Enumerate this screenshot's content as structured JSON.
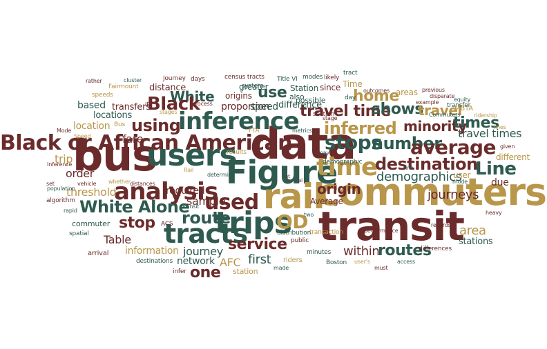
{
  "palette": {
    "brown": "#6b2b2b",
    "teal": "#2e5a4f",
    "gold": "#b8964a",
    "olive": "#8a7b2a"
  },
  "words": [
    {
      "text": "Black or African American",
      "color": "#6b2b2b",
      "size": 30,
      "rotate": 0
    },
    {
      "text": "bus",
      "color": "#6b2b2b",
      "size": 62,
      "rotate": 0
    },
    {
      "text": "users",
      "color": "#2e5a4f",
      "size": 44,
      "rotate": 0
    },
    {
      "text": "data",
      "color": "#6b2b2b",
      "size": 62,
      "rotate": 0
    },
    {
      "text": "Figure",
      "color": "#2e5a4f",
      "size": 46,
      "rotate": 0
    },
    {
      "text": "commuters",
      "color": "#b8964a",
      "size": 54,
      "rotate": 0
    },
    {
      "text": "transit",
      "color": "#6b2b2b",
      "size": 58,
      "rotate": 0
    },
    {
      "text": "rail",
      "color": "#b8964a",
      "size": 50,
      "rotate": 0
    },
    {
      "text": "trips",
      "color": "#2e5a4f",
      "size": 44,
      "rotate": 0
    },
    {
      "text": "tracts",
      "color": "#2e5a4f",
      "size": 38,
      "rotate": 0
    },
    {
      "text": "analysis",
      "color": "#6b2b2b",
      "size": 34,
      "rotate": 0
    },
    {
      "text": "inference",
      "color": "#2e5a4f",
      "size": 34,
      "rotate": 0
    },
    {
      "text": "time",
      "color": "#b8964a",
      "size": 36,
      "rotate": 0
    },
    {
      "text": "used",
      "color": "#6b2b2b",
      "size": 30,
      "rotate": 0
    },
    {
      "text": "stops",
      "color": "#2e5a4f",
      "size": 28,
      "rotate": 0
    },
    {
      "text": "number",
      "color": "#2e5a4f",
      "size": 24,
      "rotate": 0
    },
    {
      "text": "average",
      "color": "#6b2b2b",
      "size": 28,
      "rotate": 0
    },
    {
      "text": "Line",
      "color": "#2e5a4f",
      "size": 26,
      "rotate": 0
    },
    {
      "text": "destination",
      "color": "#6b2b2b",
      "size": 24,
      "rotate": 0
    },
    {
      "text": "inferred",
      "color": "#b8964a",
      "size": 24,
      "rotate": 0
    },
    {
      "text": "minority",
      "color": "#6b2b2b",
      "size": 20,
      "rotate": 0
    },
    {
      "text": "times",
      "color": "#2e5a4f",
      "size": 22,
      "rotate": 0
    },
    {
      "text": "travel time",
      "color": "#6b2b2b",
      "size": 22,
      "rotate": 0
    },
    {
      "text": "shows",
      "color": "#2e5a4f",
      "size": 22,
      "rotate": 0
    },
    {
      "text": "travel",
      "color": "#b8964a",
      "size": 20,
      "rotate": 0
    },
    {
      "text": "home",
      "color": "#b8964a",
      "size": 22,
      "rotate": 0
    },
    {
      "text": "use",
      "color": "#2e5a4f",
      "size": 22,
      "rotate": 0
    },
    {
      "text": "White",
      "color": "#2e5a4f",
      "size": 20,
      "rotate": 0
    },
    {
      "text": "Black",
      "color": "#6b2b2b",
      "size": 26,
      "rotate": 0
    },
    {
      "text": "using",
      "color": "#6b2b2b",
      "size": 24,
      "rotate": 0
    },
    {
      "text": "White Alone",
      "color": "#2e5a4f",
      "size": 24,
      "rotate": 0
    },
    {
      "text": "route",
      "color": "#2e5a4f",
      "size": 24,
      "rotate": 0
    },
    {
      "text": "stop",
      "color": "#6b2b2b",
      "size": 22,
      "rotate": 0
    },
    {
      "text": "OD",
      "color": "#b8964a",
      "size": 28,
      "rotate": 0
    },
    {
      "text": "service",
      "color": "#6b2b2b",
      "size": 22,
      "rotate": 0
    },
    {
      "text": "origin",
      "color": "#6b2b2b",
      "size": 20,
      "rotate": 0
    },
    {
      "text": "demographics",
      "color": "#2e5a4f",
      "size": 18,
      "rotate": 0
    },
    {
      "text": "journeys",
      "color": "#6b2b2b",
      "size": 18,
      "rotate": 0
    },
    {
      "text": "travel times",
      "color": "#2e5a4f",
      "size": 16,
      "rotate": 0
    },
    {
      "text": "area",
      "color": "#b8964a",
      "size": 18,
      "rotate": 0
    },
    {
      "text": "routes",
      "color": "#2e5a4f",
      "size": 22,
      "rotate": 0
    },
    {
      "text": "within",
      "color": "#6b2b2b",
      "size": 18,
      "rotate": 0
    },
    {
      "text": "first",
      "color": "#2e5a4f",
      "size": 18,
      "rotate": 0
    },
    {
      "text": "journey",
      "color": "#2e5a4f",
      "size": 16,
      "rotate": 0
    },
    {
      "text": "one",
      "color": "#6b2b2b",
      "size": 22,
      "rotate": 0
    },
    {
      "text": "Table",
      "color": "#6b2b2b",
      "size": 16,
      "rotate": 0
    },
    {
      "text": "information",
      "color": "#b8964a",
      "size": 14,
      "rotate": 0
    },
    {
      "text": "network",
      "color": "#2e5a4f",
      "size": 14,
      "rotate": 0
    },
    {
      "text": "AFC",
      "color": "#b8964a",
      "size": 16,
      "rotate": 0
    },
    {
      "text": "sample",
      "color": "#6b2b2b",
      "size": 16,
      "rotate": 0
    },
    {
      "text": "required",
      "color": "#6b2b2b",
      "size": 14,
      "rotate": 0
    },
    {
      "text": "threshold",
      "color": "#b8964a",
      "size": 16,
      "rotate": 0
    },
    {
      "text": "order",
      "color": "#6b2b2b",
      "size": 16,
      "rotate": 0
    },
    {
      "text": "trip",
      "color": "#b8964a",
      "size": 16,
      "rotate": 0
    },
    {
      "text": "fare",
      "color": "#6b2b2b",
      "size": 16,
      "rotate": 0
    },
    {
      "text": "location",
      "color": "#b8964a",
      "size": 14,
      "rotate": 0
    },
    {
      "text": "locations",
      "color": "#2e5a4f",
      "size": 13,
      "rotate": 0
    },
    {
      "text": "based",
      "color": "#2e5a4f",
      "size": 14,
      "rotate": 0
    },
    {
      "text": "transfers",
      "color": "#6b2b2b",
      "size": 13,
      "rotate": 0
    },
    {
      "text": "distance",
      "color": "#6b2b2b",
      "size": 13,
      "rotate": 0
    },
    {
      "text": "proportion",
      "color": "#6b2b2b",
      "size": 14,
      "rotate": 0
    },
    {
      "text": "speed",
      "color": "#2e5a4f",
      "size": 14,
      "rotate": 0
    },
    {
      "text": "difference",
      "color": "#2e5a4f",
      "size": 13,
      "rotate": 0
    },
    {
      "text": "origins",
      "color": "#6b2b2b",
      "size": 12,
      "rotate": 0
    },
    {
      "text": "greater",
      "color": "#2e5a4f",
      "size": 12,
      "rotate": 0
    },
    {
      "text": "Station",
      "color": "#2e5a4f",
      "size": 12,
      "rotate": 0
    },
    {
      "text": "since",
      "color": "#6b2b2b",
      "size": 12,
      "rotate": 0
    },
    {
      "text": "also",
      "color": "#2e5a4f",
      "size": 11,
      "rotate": 0
    },
    {
      "text": "possible",
      "color": "#2e5a4f",
      "size": 11,
      "rotate": 0
    },
    {
      "text": "Time",
      "color": "#b8964a",
      "size": 12,
      "rotate": 0
    },
    {
      "text": "areas",
      "color": "#b8964a",
      "size": 12,
      "rotate": 0
    },
    {
      "text": "ridership",
      "color": "#b8964a",
      "size": 8,
      "rotate": 0
    },
    {
      "text": "cluster",
      "color": "#2e5a4f",
      "size": 8,
      "rotate": 0
    },
    {
      "text": "Journey",
      "color": "#6b2b2b",
      "size": 9,
      "rotate": 0
    },
    {
      "text": "days",
      "color": "#6b2b2b",
      "size": 9,
      "rotate": 0
    },
    {
      "text": "census tracts",
      "color": "#6b2b2b",
      "size": 9,
      "rotate": 0
    },
    {
      "text": "Title VI",
      "color": "#2e5a4f",
      "size": 9,
      "rotate": 0
    },
    {
      "text": "modes",
      "color": "#2e5a4f",
      "size": 9,
      "rotate": 0
    },
    {
      "text": "likely",
      "color": "#6b2b2b",
      "size": 9,
      "rotate": 0
    },
    {
      "text": "tract",
      "color": "#2e5a4f",
      "size": 9,
      "rotate": 0
    },
    {
      "text": "Fairmount",
      "color": "#b8964a",
      "size": 9,
      "rotate": 0
    },
    {
      "text": "speeds",
      "color": "#b8964a",
      "size": 9,
      "rotate": 0
    },
    {
      "text": "Speed",
      "color": "#b8964a",
      "size": 8,
      "rotate": 0
    },
    {
      "text": "Mode",
      "color": "#6b2b2b",
      "size": 8,
      "rotate": 0
    },
    {
      "text": "Bus",
      "color": "#b8964a",
      "size": 9,
      "rotate": 0
    },
    {
      "text": "stages",
      "color": "#b8964a",
      "size": 8,
      "rotate": 0
    },
    {
      "text": "process",
      "color": "#6b2b2b",
      "size": 8,
      "rotate": 0
    },
    {
      "text": "ID",
      "color": "#6b2b2b",
      "size": 8,
      "rotate": 0
    },
    {
      "text": "system",
      "color": "#2e5a4f",
      "size": 9,
      "rotate": 0
    },
    {
      "text": "outcomes",
      "color": "#6b2b2b",
      "size": 8,
      "rotate": 0
    },
    {
      "text": "previous",
      "color": "#6b2b2b",
      "size": 8,
      "rotate": 0
    },
    {
      "text": "disparate",
      "color": "#6b2b2b",
      "size": 8,
      "rotate": 0
    },
    {
      "text": "equity",
      "color": "#2e5a4f",
      "size": 8,
      "rotate": 0
    },
    {
      "text": "example",
      "color": "#6b2b2b",
      "size": 8,
      "rotate": 0
    },
    {
      "text": "transfer",
      "color": "#2e5a4f",
      "size": 9,
      "rotate": 0
    },
    {
      "text": "MBTA",
      "color": "#b8964a",
      "size": 10,
      "rotate": 0
    },
    {
      "text": "Commuters",
      "color": "#2e5a4f",
      "size": 8,
      "rotate": 0
    },
    {
      "text": "day",
      "color": "#2e5a4f",
      "size": 9,
      "rotate": 0
    },
    {
      "text": "stage",
      "color": "#6b2b2b",
      "size": 8,
      "rotate": 0
    },
    {
      "text": "section",
      "color": "#6b2b2b",
      "size": 9,
      "rotate": 0
    },
    {
      "text": "metrics",
      "color": "#2e5a4f",
      "size": 8,
      "rotate": 0
    },
    {
      "text": "FTA",
      "color": "#b8964a",
      "size": 9,
      "rotate": 0
    },
    {
      "text": "lines",
      "color": "#b8964a",
      "size": 8,
      "rotate": 0
    },
    {
      "text": "given",
      "color": "#6b2b2b",
      "size": 8,
      "rotate": 0
    },
    {
      "text": "different",
      "color": "#b8964a",
      "size": 12,
      "rotate": 0
    },
    {
      "text": "may",
      "color": "#2e5a4f",
      "size": 8,
      "rotate": 0
    },
    {
      "text": "demographic",
      "color": "#2e5a4f",
      "size": 9,
      "rotate": 0
    },
    {
      "text": "results",
      "color": "#b8964a",
      "size": 9,
      "rotate": 0
    },
    {
      "text": "et",
      "color": "#6b2b2b",
      "size": 7,
      "rotate": 0
    },
    {
      "text": "al",
      "color": "#6b2b2b",
      "size": 7,
      "rotate": 0
    },
    {
      "text": "determine",
      "color": "#2e5a4f",
      "size": 8,
      "rotate": 0
    },
    {
      "text": "line",
      "color": "#2e5a4f",
      "size": 8,
      "rotate": 0
    },
    {
      "text": "user",
      "color": "#b8964a",
      "size": 12,
      "rotate": 0
    },
    {
      "text": "due",
      "color": "#6b2b2b",
      "size": 14,
      "rotate": 0
    },
    {
      "text": "mode",
      "color": "#2e5a4f",
      "size": 8,
      "rotate": 0
    },
    {
      "text": "Inference",
      "color": "#6b2b2b",
      "size": 8,
      "rotate": 0
    },
    {
      "text": "set",
      "color": "#6b2b2b",
      "size": 8,
      "rotate": 0
    },
    {
      "text": "population",
      "color": "#2e5a4f",
      "size": 8,
      "rotate": 0
    },
    {
      "text": "vehicle",
      "color": "#6b2b2b",
      "size": 8,
      "rotate": 0
    },
    {
      "text": "whether",
      "color": "#b8964a",
      "size": 8,
      "rotate": 0
    },
    {
      "text": "distances",
      "color": "#6b2b2b",
      "size": 8,
      "rotate": 0
    },
    {
      "text": "Rail",
      "color": "#b8964a",
      "size": 8,
      "rotate": 0
    },
    {
      "text": "algorithm",
      "color": "#6b2b2b",
      "size": 9,
      "rotate": 0
    },
    {
      "text": "rapid",
      "color": "#2e5a4f",
      "size": 8,
      "rotate": 0
    },
    {
      "text": "Transit",
      "color": "#2e5a4f",
      "size": 8,
      "rotate": 0
    },
    {
      "text": "Average",
      "color": "#6b2b2b",
      "size": 12,
      "rotate": 0
    },
    {
      "text": "two",
      "color": "#2e5a4f",
      "size": 8,
      "rotate": 0
    },
    {
      "text": "transaction",
      "color": "#b8964a",
      "size": 9,
      "rotate": 0
    },
    {
      "text": "performance",
      "color": "#6b2b2b",
      "size": 8,
      "rotate": 0
    },
    {
      "text": "heavy",
      "color": "#6b2b2b",
      "size": 8,
      "rotate": 0
    },
    {
      "text": "stations",
      "color": "#2e5a4f",
      "size": 13,
      "rotate": 0
    },
    {
      "text": "commuter",
      "color": "#2e5a4f",
      "size": 11,
      "rotate": 0
    },
    {
      "text": "ACS",
      "color": "#6b2b2b",
      "size": 9,
      "rotate": 0
    },
    {
      "text": "spatial",
      "color": "#2e5a4f",
      "size": 9,
      "rotate": 0
    },
    {
      "text": "distribution",
      "color": "#2e5a4f",
      "size": 9,
      "rotate": 0
    },
    {
      "text": "public",
      "color": "#6b2b2b",
      "size": 9,
      "rotate": 0
    },
    {
      "text": "records",
      "color": "#6b2b2b",
      "size": 8,
      "rotate": 0
    },
    {
      "text": "arrival",
      "color": "#6b2b2b",
      "size": 10,
      "rotate": 0
    },
    {
      "text": "differences",
      "color": "#6b2b2b",
      "size": 9,
      "rotate": 0
    },
    {
      "text": "minutes",
      "color": "#2e5a4f",
      "size": 9,
      "rotate": 0
    },
    {
      "text": "riders",
      "color": "#b8964a",
      "size": 10,
      "rotate": 0
    },
    {
      "text": "Boston",
      "color": "#2e5a4f",
      "size": 9,
      "rotate": 0
    },
    {
      "text": "user's",
      "color": "#b8964a",
      "size": 8,
      "rotate": 0
    },
    {
      "text": "must",
      "color": "#6b2b2b",
      "size": 8,
      "rotate": 0
    },
    {
      "text": "access",
      "color": "#2e5a4f",
      "size": 8,
      "rotate": 0
    },
    {
      "text": "destinations",
      "color": "#2e5a4f",
      "size": 9,
      "rotate": 0
    },
    {
      "text": "made",
      "color": "#2e5a4f",
      "size": 8,
      "rotate": 0
    },
    {
      "text": "station",
      "color": "#b8964a",
      "size": 11,
      "rotate": 0
    },
    {
      "text": "infer",
      "color": "#6b2b2b",
      "size": 9,
      "rotate": 0
    },
    {
      "text": "rather",
      "color": "#6b2b2b",
      "size": 8,
      "rotate": 0
    }
  ]
}
